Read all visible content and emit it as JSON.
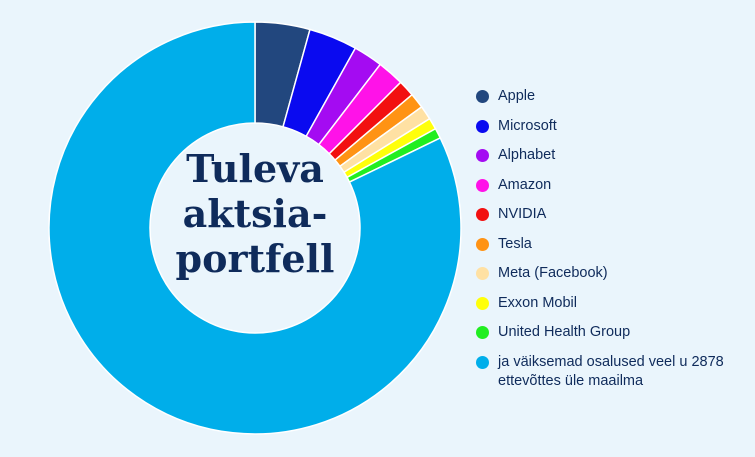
{
  "chart_data": {
    "type": "pie",
    "variant": "donut",
    "center_title_lines": [
      "Tuleva",
      "aktsia-",
      "portfell"
    ],
    "legend_placement": "right",
    "slices": [
      {
        "label": "Apple",
        "value": 4.3,
        "color": "#22477E"
      },
      {
        "label": "Microsoft",
        "value": 3.8,
        "color": "#0A0AF0"
      },
      {
        "label": "Alphabet",
        "value": 2.3,
        "color": "#A40BF2"
      },
      {
        "label": "Amazon",
        "value": 2.1,
        "color": "#FF12E8"
      },
      {
        "label": "NVIDIA",
        "value": 1.3,
        "color": "#F21010"
      },
      {
        "label": "Tesla",
        "value": 1.2,
        "color": "#FF9314"
      },
      {
        "label": "Meta (Facebook)",
        "value": 1.1,
        "color": "#FFE1A3"
      },
      {
        "label": "Exxon Mobil",
        "value": 0.9,
        "color": "#FFFF0A"
      },
      {
        "label": "United Health Group",
        "value": 0.8,
        "color": "#21EE21"
      },
      {
        "label": "ja väiksemad osalused veel u 2878 ettevõttes üle maailma",
        "value": 82.2,
        "color": "#00AEEA"
      }
    ]
  }
}
